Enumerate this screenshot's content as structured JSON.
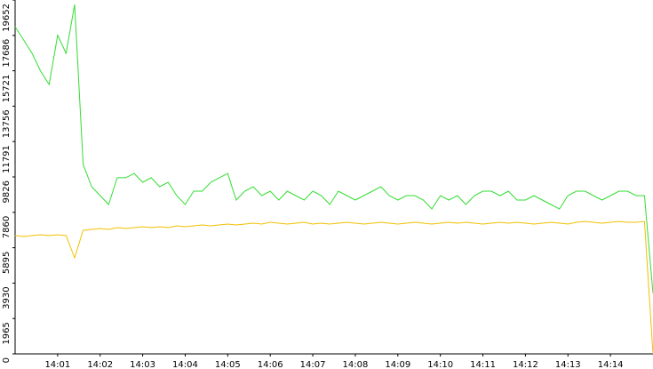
{
  "chart_data": {
    "type": "line",
    "x": [
      840.0,
      840.2,
      840.4,
      840.6,
      840.8,
      841.0,
      841.2,
      841.4,
      841.6,
      841.8,
      842.0,
      842.2,
      842.4,
      842.6,
      842.8,
      843.0,
      843.2,
      843.4,
      843.6,
      843.8,
      844.0,
      844.2,
      844.4,
      844.6,
      844.8,
      845.0,
      845.2,
      845.4,
      845.6,
      845.8,
      846.0,
      846.2,
      846.4,
      846.6,
      846.8,
      847.0,
      847.2,
      847.4,
      847.6,
      847.8,
      848.0,
      848.2,
      848.4,
      848.6,
      848.8,
      849.0,
      849.2,
      849.4,
      849.6,
      849.8,
      850.0,
      850.2,
      850.4,
      850.6,
      850.8,
      851.0,
      851.2,
      851.4,
      851.6,
      851.8,
      852.0,
      852.2,
      852.4,
      852.6,
      852.8,
      853.0,
      853.2,
      853.4,
      853.6,
      853.8,
      854.0,
      854.2,
      854.4,
      854.6,
      854.8,
      855.0
    ],
    "series": [
      {
        "color": "#33dd33",
        "values": [
          18170,
          17430,
          16690,
          15700,
          14960,
          17690,
          16690,
          19400,
          10520,
          9283,
          8790,
          8295,
          9780,
          9780,
          10020,
          9530,
          9780,
          9283,
          9530,
          8790,
          8295,
          9036,
          9036,
          9530,
          9780,
          10020,
          8542,
          9036,
          9283,
          8789,
          9036,
          8542,
          9036,
          8789,
          8542,
          9036,
          8789,
          8295,
          9036,
          8789,
          8542,
          8789,
          9036,
          9283,
          8789,
          8542,
          8789,
          8789,
          8542,
          8048,
          8789,
          8542,
          8789,
          8295,
          8789,
          9036,
          9036,
          8789,
          9036,
          8542,
          8542,
          8789,
          8542,
          8295,
          8048,
          8789,
          9036,
          9036,
          8789,
          8542,
          8789,
          9036,
          9036,
          8789,
          8789,
          3358
        ]
      },
      {
        "color": "#f0c000",
        "values": [
          6567,
          6517,
          6567,
          6616,
          6567,
          6616,
          6567,
          5333,
          6863,
          6913,
          6962,
          6913,
          7012,
          6962,
          7012,
          7061,
          7012,
          7061,
          7012,
          7110,
          7061,
          7110,
          7160,
          7110,
          7160,
          7209,
          7160,
          7209,
          7258,
          7209,
          7308,
          7258,
          7209,
          7258,
          7308,
          7209,
          7258,
          7209,
          7258,
          7308,
          7258,
          7209,
          7258,
          7308,
          7258,
          7209,
          7258,
          7308,
          7258,
          7209,
          7258,
          7308,
          7258,
          7308,
          7258,
          7209,
          7258,
          7308,
          7258,
          7308,
          7258,
          7209,
          7258,
          7308,
          7258,
          7209,
          7308,
          7358,
          7308,
          7258,
          7308,
          7358,
          7308,
          7308,
          7358,
          0
        ]
      }
    ],
    "xlim": [
      840,
      855
    ],
    "xticks": [
      {
        "value": 841,
        "label": "14:01"
      },
      {
        "value": 842,
        "label": "14:02"
      },
      {
        "value": 843,
        "label": "14:03"
      },
      {
        "value": 844,
        "label": "14:04"
      },
      {
        "value": 845,
        "label": "14:05"
      },
      {
        "value": 846,
        "label": "14:06"
      },
      {
        "value": 847,
        "label": "14:07"
      },
      {
        "value": 848,
        "label": "14:08"
      },
      {
        "value": 849,
        "label": "14:09"
      },
      {
        "value": 850,
        "label": "14:10"
      },
      {
        "value": 851,
        "label": "14:11"
      },
      {
        "value": 852,
        "label": "14:12"
      },
      {
        "value": 853,
        "label": "14:13"
      },
      {
        "value": 854,
        "label": "14:14"
      }
    ],
    "ylim": [
      0,
      19652
    ],
    "yticks": [
      0,
      1965,
      3930,
      5895,
      7860,
      9826,
      11791,
      13756,
      15721,
      17686,
      19652
    ]
  }
}
